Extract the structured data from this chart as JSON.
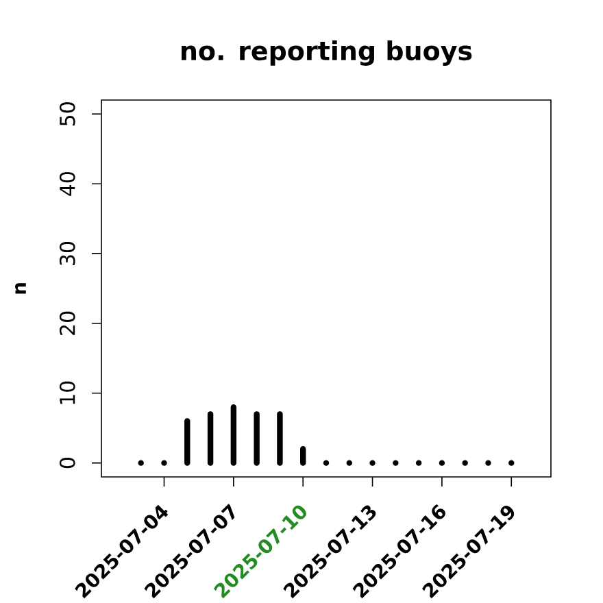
{
  "chart_data": {
    "type": "bar",
    "title": "no. reporting buoys",
    "ylabel": "n",
    "x": [
      "2025-07-03",
      "2025-07-04",
      "2025-07-05",
      "2025-07-06",
      "2025-07-07",
      "2025-07-08",
      "2025-07-09",
      "2025-07-10",
      "2025-07-11",
      "2025-07-12",
      "2025-07-13",
      "2025-07-14",
      "2025-07-15",
      "2025-07-16",
      "2025-07-17",
      "2025-07-18",
      "2025-07-19"
    ],
    "values": [
      0,
      0,
      6,
      7,
      8,
      7,
      7,
      2,
      0,
      0,
      0,
      0,
      0,
      0,
      0,
      0,
      0
    ],
    "color": "#000000",
    "xlim": [
      "2025-07-01T07:00",
      "2025-07-20T17:00"
    ],
    "xticks": [
      "2025-07-04",
      "2025-07-07",
      {
        "value": "2025-07-10",
        "label": null
      },
      "2025-07-13",
      "2025-07-16",
      "2025-07-19"
    ],
    "ylim": [
      -2,
      52
    ],
    "yticks": [
      0,
      10,
      20,
      30,
      40,
      50
    ],
    "annotations": [
      "2025-07-10"
    ]
  }
}
